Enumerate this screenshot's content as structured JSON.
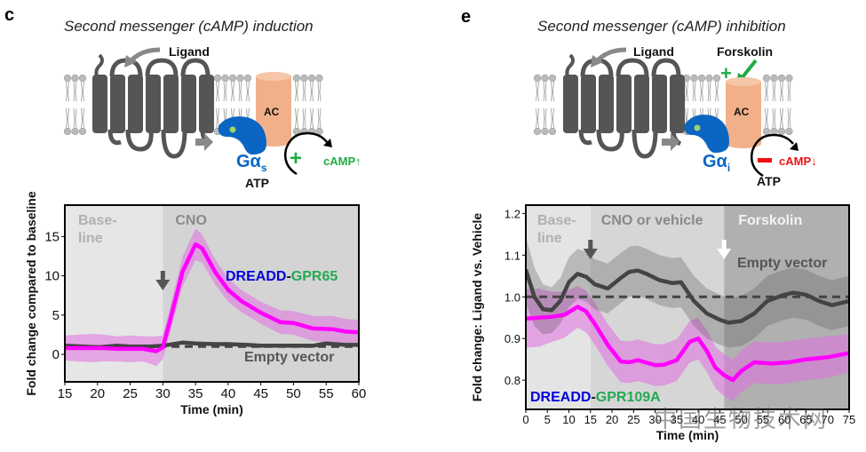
{
  "panels": {
    "c": {
      "letter": "c",
      "title": "Second messenger (cAMP) induction",
      "diagram": {
        "ligand_label": "Ligand",
        "ac_label": "AC",
        "g_protein_label": "Gα",
        "g_protein_subscript": "s",
        "atp_label": "ATP",
        "effect_sign": "+",
        "camp_label": "cAMP↑",
        "effect_color": "#22aa44"
      }
    },
    "e": {
      "letter": "e",
      "title": "Second messenger (cAMP) inhibition",
      "diagram": {
        "ligand_label": "Ligand",
        "forskolin_label": "Forskolin",
        "forskolin_sign": "+",
        "ac_label": "AC",
        "g_protein_label": "Gα",
        "g_protein_subscript": "i",
        "atp_label": "ATP",
        "effect_sign": "−",
        "camp_label": "cAMP↓",
        "effect_color": "#ee1111"
      }
    }
  },
  "colors": {
    "magenta": "#ff00ff",
    "magenta_band": "#e8a0e8",
    "dark": "#444444",
    "gray_band": "#a0a0a0",
    "dreadd_blue": "#0000dd",
    "gpr_green": "#22aa55",
    "g_protein_blue": "#0a66c2",
    "ac_orange": "#f2b08a"
  },
  "watermark": "中国生物技术网",
  "chart_data": [
    {
      "type": "line",
      "panel": "c",
      "title": "",
      "xlabel": "Time (min)",
      "ylabel": "Fold change compared to baseline",
      "xlim": [
        15,
        60
      ],
      "ylim": [
        -3.5,
        19
      ],
      "xticks": [
        15,
        20,
        25,
        30,
        35,
        40,
        45,
        50,
        55,
        60
      ],
      "yticks": [
        0,
        5,
        10,
        15
      ],
      "grid": false,
      "regions": [
        {
          "label": "Base-\nline",
          "label_lines": [
            "Base-",
            "line"
          ],
          "from": 15,
          "to": 30
        },
        {
          "label": "CNO",
          "label_lines": [
            "CNO"
          ],
          "from": 30,
          "to": 60
        }
      ],
      "annotations": {
        "arrow_at": 30,
        "reference_line": 1,
        "series_label_prefix": "DREADD",
        "series_label_suffix": "GPR65",
        "empty_label": "Empty vector"
      },
      "series": [
        {
          "name": "DREADD-GPR65",
          "x": [
            15,
            17,
            19,
            21,
            23,
            25,
            27,
            29,
            30,
            31,
            33,
            35,
            36,
            38,
            40,
            42,
            45,
            48,
            50,
            53,
            56,
            58,
            60
          ],
          "values": [
            0.8,
            0.8,
            0.8,
            0.8,
            0.7,
            0.7,
            0.7,
            0.4,
            0.9,
            4.0,
            10.5,
            14.0,
            13.5,
            10.5,
            8.2,
            6.8,
            5.3,
            4.1,
            4.0,
            3.3,
            3.2,
            2.9,
            2.8
          ],
          "error": [
            1.6,
            1.7,
            1.8,
            1.7,
            1.6,
            1.7,
            1.6,
            1.9,
            1.5,
            1.6,
            1.9,
            2.0,
            1.8,
            1.6,
            1.5,
            1.4,
            1.4,
            1.5,
            1.5,
            1.6,
            1.7,
            1.6,
            1.6
          ]
        },
        {
          "name": "Empty vector",
          "x": [
            15,
            18,
            20,
            23,
            25,
            28,
            30,
            33,
            35,
            38,
            40,
            43,
            45,
            48,
            50,
            53,
            55,
            58,
            60
          ],
          "values": [
            1.1,
            1.0,
            0.9,
            1.1,
            1.0,
            1.0,
            1.1,
            1.5,
            1.4,
            1.3,
            1.3,
            1.2,
            1.1,
            1.1,
            1.1,
            1.1,
            1.4,
            1.2,
            1.2
          ]
        }
      ]
    },
    {
      "type": "line",
      "panel": "e",
      "title": "",
      "xlabel": "Time (min)",
      "ylabel": "Fold change: Ligand vs. Vehicle",
      "xlim": [
        0,
        75
      ],
      "ylim": [
        0.73,
        1.22
      ],
      "xticks": [
        0,
        5,
        10,
        15,
        20,
        25,
        30,
        35,
        40,
        45,
        50,
        55,
        60,
        65,
        70,
        75
      ],
      "yticks": [
        0.8,
        0.9,
        1.0,
        1.1,
        1.2
      ],
      "grid": false,
      "regions": [
        {
          "label": "Base-\nline",
          "label_lines": [
            "Base-",
            "line"
          ],
          "from": 0,
          "to": 15
        },
        {
          "label": "CNO or vehicle",
          "label_lines": [
            "CNO or vehicle"
          ],
          "from": 15,
          "to": 46
        },
        {
          "label": "Forskolin",
          "label_lines": [
            "Forskolin"
          ],
          "from": 46,
          "to": 75
        }
      ],
      "annotations": {
        "arrow_at": [
          15,
          46
        ],
        "reference_line": 1.0,
        "series_label_prefix": "DREADD",
        "series_label_suffix": "GPR109A",
        "empty_label": "Empty vector"
      },
      "series": [
        {
          "name": "DREADD-GPR109A",
          "x": [
            0,
            3,
            6,
            9,
            12,
            14,
            16,
            19,
            22,
            24,
            26,
            28,
            30,
            32,
            35,
            38,
            40,
            42,
            44,
            46,
            48,
            50,
            53,
            57,
            61,
            65,
            70,
            75
          ],
          "values": [
            0.948,
            0.95,
            0.952,
            0.957,
            0.976,
            0.965,
            0.935,
            0.885,
            0.845,
            0.843,
            0.848,
            0.842,
            0.836,
            0.837,
            0.848,
            0.892,
            0.9,
            0.87,
            0.83,
            0.812,
            0.8,
            0.822,
            0.843,
            0.84,
            0.843,
            0.85,
            0.855,
            0.865
          ],
          "error": [
            0.07,
            0.07,
            0.06,
            0.055,
            0.05,
            0.05,
            0.05,
            0.05,
            0.05,
            0.05,
            0.05,
            0.05,
            0.05,
            0.05,
            0.05,
            0.05,
            0.05,
            0.05,
            0.05,
            0.05,
            0.05,
            0.05,
            0.05,
            0.05,
            0.05,
            0.05,
            0.05,
            0.045
          ]
        },
        {
          "name": "Empty vector",
          "x": [
            0,
            2,
            4,
            6,
            8,
            10,
            12,
            14,
            16,
            19,
            22,
            24,
            26,
            28,
            31,
            34,
            36,
            39,
            42,
            45,
            47,
            50,
            53,
            56,
            60,
            62,
            65,
            68,
            71,
            75
          ],
          "values": [
            1.065,
            1.0,
            0.97,
            0.968,
            0.99,
            1.035,
            1.055,
            1.048,
            1.03,
            1.02,
            1.045,
            1.06,
            1.063,
            1.055,
            1.04,
            1.033,
            1.035,
            0.99,
            0.96,
            0.945,
            0.938,
            0.942,
            0.96,
            0.99,
            1.005,
            1.01,
            1.005,
            0.99,
            0.98,
            0.99
          ],
          "error": [
            0.08,
            0.07,
            0.06,
            0.055,
            0.055,
            0.06,
            0.06,
            0.06,
            0.06,
            0.06,
            0.06,
            0.06,
            0.06,
            0.06,
            0.06,
            0.06,
            0.06,
            0.06,
            0.06,
            0.06,
            0.06,
            0.06,
            0.06,
            0.06,
            0.06,
            0.06,
            0.06,
            0.06,
            0.06,
            0.06
          ]
        }
      ]
    }
  ]
}
